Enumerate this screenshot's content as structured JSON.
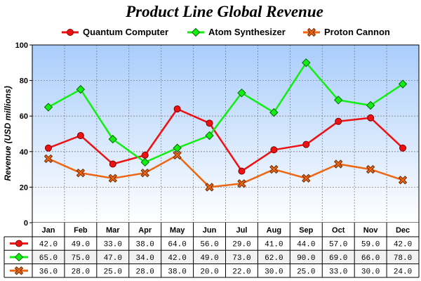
{
  "chart_data": {
    "type": "line",
    "title": "Product Line Global Revenue",
    "ylabel": "Revenue (USD millions)",
    "xlabel": "",
    "ylim": [
      0,
      100
    ],
    "yticks": [
      "0",
      "20",
      "40",
      "60",
      "80",
      "100"
    ],
    "categories": [
      "Jan",
      "Feb",
      "Mar",
      "Apr",
      "May",
      "Jun",
      "Jul",
      "Aug",
      "Sep",
      "Oct",
      "Nov",
      "Dec"
    ],
    "grid": true,
    "legend_position": "top",
    "series": [
      {
        "name": "Quantum Computer",
        "color": "#ee1111",
        "marker": "circle",
        "values": [
          42,
          49,
          33,
          38,
          64,
          56,
          29,
          41,
          44,
          57,
          59,
          42
        ],
        "labels": [
          "42.0",
          "49.0",
          "33.0",
          "38.0",
          "64.0",
          "56.0",
          "29.0",
          "41.0",
          "44.0",
          "57.0",
          "59.0",
          "42.0"
        ]
      },
      {
        "name": "Atom Synthesizer",
        "color": "#11ee11",
        "marker": "diamond",
        "values": [
          65,
          75,
          47,
          34,
          42,
          49,
          73,
          62,
          90,
          69,
          66,
          78
        ],
        "labels": [
          "65.0",
          "75.0",
          "47.0",
          "34.0",
          "42.0",
          "49.0",
          "73.0",
          "62.0",
          "90.0",
          "69.0",
          "66.0",
          "78.0"
        ]
      },
      {
        "name": "Proton Cannon",
        "color": "#ee6611",
        "marker": "x-cross",
        "values": [
          36,
          28,
          25,
          28,
          38,
          20,
          22,
          30,
          25,
          33,
          30,
          24
        ],
        "labels": [
          "36.0",
          "28.0",
          "25.0",
          "28.0",
          "38.0",
          "20.0",
          "22.0",
          "30.0",
          "25.0",
          "33.0",
          "30.0",
          "24.0"
        ]
      }
    ]
  }
}
